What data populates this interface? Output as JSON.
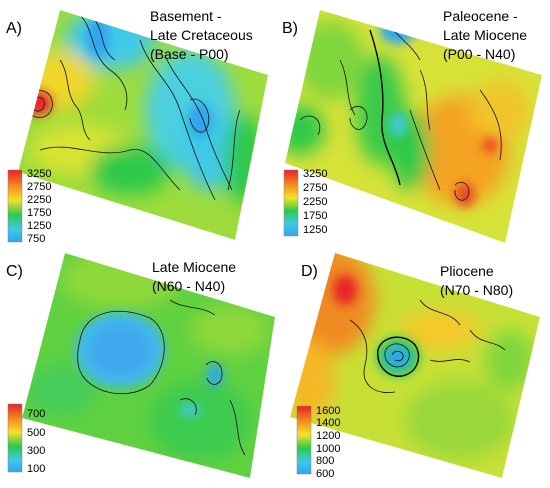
{
  "figure": {
    "panels": [
      {
        "id": "A",
        "letter": "A)",
        "title_lines": [
          "Basement -",
          "Late Cretaceous",
          "(Base - P00)"
        ],
        "colorbar_ticks": [
          "3250",
          "2750",
          "2250",
          "1750",
          "1250",
          "750"
        ],
        "value_range": [
          750,
          3250
        ]
      },
      {
        "id": "B",
        "letter": "B)",
        "title_lines": [
          "Paleocene -",
          "Late Miocene",
          "(P00 - N40)"
        ],
        "colorbar_ticks": [
          "3250",
          "2750",
          "2250",
          "1750",
          "1250"
        ],
        "value_range": [
          1250,
          3250
        ]
      },
      {
        "id": "C",
        "letter": "C)",
        "title_lines": [
          "Late Miocene",
          "(N60 - N40)"
        ],
        "colorbar_ticks": [
          "700",
          "500",
          "300",
          "100"
        ],
        "value_range": [
          100,
          700
        ]
      },
      {
        "id": "D",
        "letter": "D)",
        "title_lines": [
          "Pliocene",
          "(N70 - N80)"
        ],
        "colorbar_ticks": [
          "1600",
          "1400",
          "1200",
          "1000",
          "800",
          "600"
        ],
        "value_range": [
          600,
          1600
        ]
      }
    ],
    "colormap": [
      "#e8202a",
      "#f58a1f",
      "#f5e12a",
      "#2ec94a",
      "#3fc9e8",
      "#2fa6ee"
    ]
  }
}
